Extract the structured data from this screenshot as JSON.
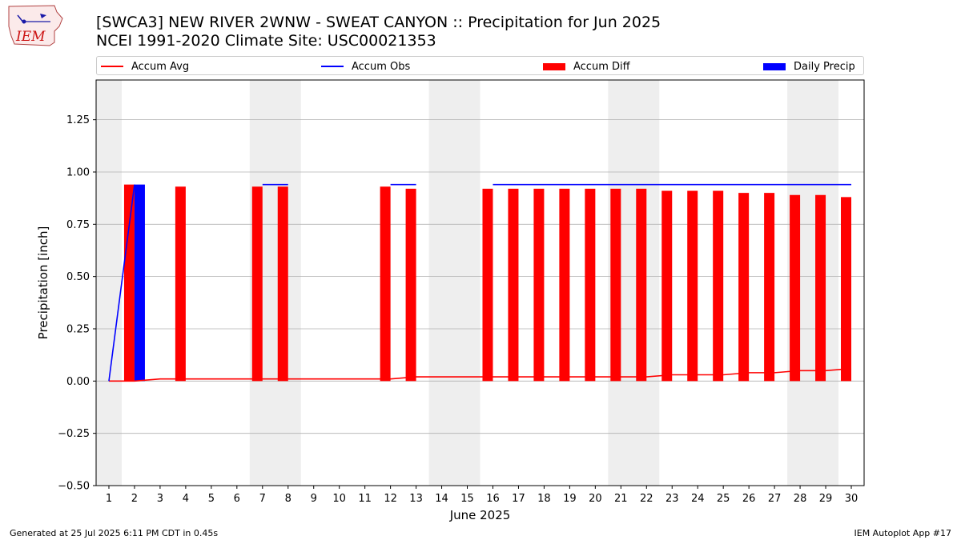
{
  "header": {
    "title": "[SWCA3] NEW RIVER 2WNW - SWEAT CANYON :: Precipitation for Jun 2025",
    "subtitle": "NCEI 1991-2020 Climate Site: USC00021353",
    "logo_text": "IEM"
  },
  "footer": {
    "generated": "Generated at 25 Jul 2025 6:11 PM CDT in 0.45s",
    "app": "IEM Autoplot App #17"
  },
  "colors": {
    "accum_avg": "#ff0000",
    "accum_obs": "#0000ff",
    "accum_diff": "#ff0000",
    "daily_precip": "#0000ff",
    "weekend_shade": "#eeeeee",
    "grid": "#b0b0b0"
  },
  "chart_data": {
    "type": "bar",
    "xlabel": "June 2025",
    "ylabel": "Precipitation [inch]",
    "xlim": [
      0.5,
      30.5
    ],
    "ylim": [
      -0.5,
      1.44
    ],
    "yticks": [
      -0.5,
      -0.25,
      0.0,
      0.25,
      0.5,
      0.75,
      1.0,
      1.25
    ],
    "ytick_labels": [
      "−0.50",
      "−0.25",
      "0.00",
      "0.25",
      "0.50",
      "0.75",
      "1.00",
      "1.25"
    ],
    "x": [
      1,
      2,
      3,
      4,
      5,
      6,
      7,
      8,
      9,
      10,
      11,
      12,
      13,
      14,
      15,
      16,
      17,
      18,
      19,
      20,
      21,
      22,
      23,
      24,
      25,
      26,
      27,
      28,
      29,
      30
    ],
    "x_tick_labels": [
      "1",
      "2",
      "3",
      "4",
      "5",
      "6",
      "7",
      "8",
      "9",
      "10",
      "11",
      "12",
      "13",
      "14",
      "15",
      "16",
      "17",
      "18",
      "19",
      "20",
      "21",
      "22",
      "23",
      "24",
      "25",
      "26",
      "27",
      "28",
      "29",
      "30"
    ],
    "shaded_ranges": [
      [
        0.5,
        1.5
      ],
      [
        6.5,
        8.5
      ],
      [
        13.5,
        15.5
      ],
      [
        20.5,
        22.5
      ],
      [
        27.5,
        29.5
      ]
    ],
    "grid": "horizontal",
    "legend_position": "top",
    "series": [
      {
        "name": "Accum Avg",
        "kind": "line",
        "values": [
          0.0,
          0.0,
          0.01,
          0.01,
          0.01,
          0.01,
          0.01,
          0.01,
          0.01,
          0.01,
          0.01,
          0.01,
          0.02,
          0.02,
          0.02,
          0.02,
          0.02,
          0.02,
          0.02,
          0.02,
          0.02,
          0.02,
          0.03,
          0.03,
          0.03,
          0.04,
          0.04,
          0.05,
          0.05,
          0.06
        ]
      },
      {
        "name": "Accum Obs",
        "kind": "step-line",
        "values": [
          0.0,
          0.94,
          null,
          null,
          null,
          null,
          0.94,
          0.94,
          null,
          null,
          null,
          0.94,
          0.94,
          null,
          null,
          0.94,
          0.94,
          0.94,
          0.94,
          0.94,
          0.94,
          0.94,
          0.94,
          0.94,
          0.94,
          0.94,
          0.94,
          0.94,
          0.94,
          0.94
        ]
      },
      {
        "name": "Accum Diff",
        "kind": "bar",
        "values": [
          null,
          0.94,
          null,
          0.93,
          null,
          null,
          0.93,
          0.93,
          null,
          null,
          null,
          0.93,
          0.92,
          null,
          null,
          0.92,
          0.92,
          0.92,
          0.92,
          0.92,
          0.92,
          0.92,
          0.91,
          0.91,
          0.91,
          0.9,
          0.9,
          0.89,
          0.89,
          0.88
        ]
      },
      {
        "name": "Daily Precip",
        "kind": "bar",
        "values": [
          0.0,
          0.94,
          0.0,
          0.0,
          0.0,
          0.0,
          0.0,
          0.0,
          0.0,
          0.0,
          0.0,
          0.0,
          0.0,
          0.0,
          0.0,
          0.0,
          0.0,
          0.0,
          0.0,
          0.0,
          0.0,
          0.0,
          0.0,
          0.0,
          0.0,
          0.0,
          0.0,
          0.0,
          0.0,
          0.0
        ]
      }
    ]
  }
}
